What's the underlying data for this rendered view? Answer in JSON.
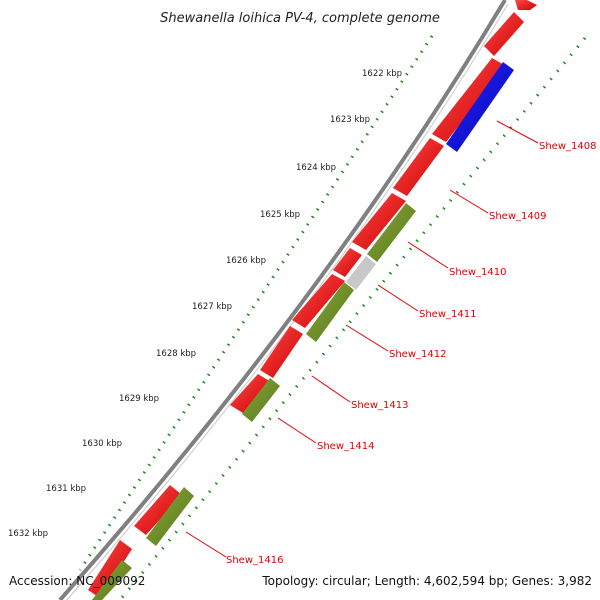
{
  "title": "Shewanella loihica PV-4, complete genome",
  "accession": "Accession: NC_009092",
  "summary": "Topology: circular; Length: 4,602,594 bp; Genes: 3,982",
  "kbp_labels": [
    "1622 kbp",
    "1623 kbp",
    "1624 kbp",
    "1625 kbp",
    "1626 kbp",
    "1627 kbp",
    "1628 kbp",
    "1629 kbp",
    "1630 kbp",
    "1631 kbp",
    "1632 kbp"
  ],
  "gene_labels": [
    "Shew_1408",
    "Shew_1409",
    "Shew_1410",
    "Shew_1411",
    "Shew_1412",
    "Shew_1413",
    "Shew_1414",
    "Shew_1416"
  ],
  "colors": {
    "backbone": "#808080",
    "cds_forward": "#ee0000",
    "rna": "#0000dd",
    "orthologs": "#6b8e23",
    "unmatched": "#c8c8c8",
    "ticks": "#1a8a1a",
    "labels": "#e00000"
  }
}
